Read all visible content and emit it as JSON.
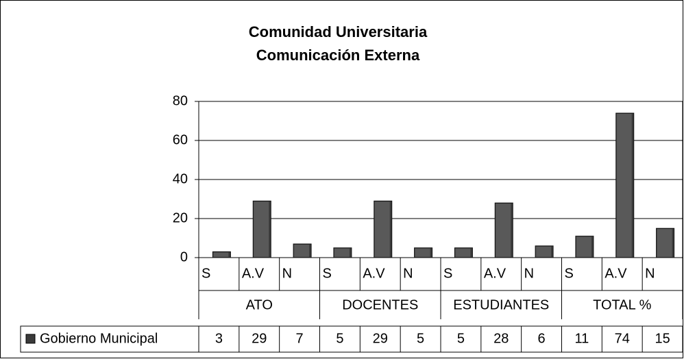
{
  "chart_data": {
    "type": "bar",
    "title": [
      "Comunidad Universitaria",
      "Comunicación Externa"
    ],
    "categories": [
      "S",
      "A.V",
      "N",
      "S",
      "A.V",
      "N",
      "S",
      "A.V",
      "N",
      "S",
      "A.V",
      "N"
    ],
    "groups": [
      "ATO",
      "DOCENTES",
      "ESTUDIANTES",
      "TOTAL %"
    ],
    "series": [
      {
        "name": "Gobierno Municipal",
        "color": "#3a3a3a",
        "values": [
          3,
          29,
          7,
          5,
          29,
          5,
          5,
          28,
          6,
          11,
          74,
          15
        ]
      }
    ],
    "ylim": [
      0,
      80
    ],
    "yticks": [
      0,
      20,
      40,
      60,
      80
    ],
    "grid": true
  }
}
